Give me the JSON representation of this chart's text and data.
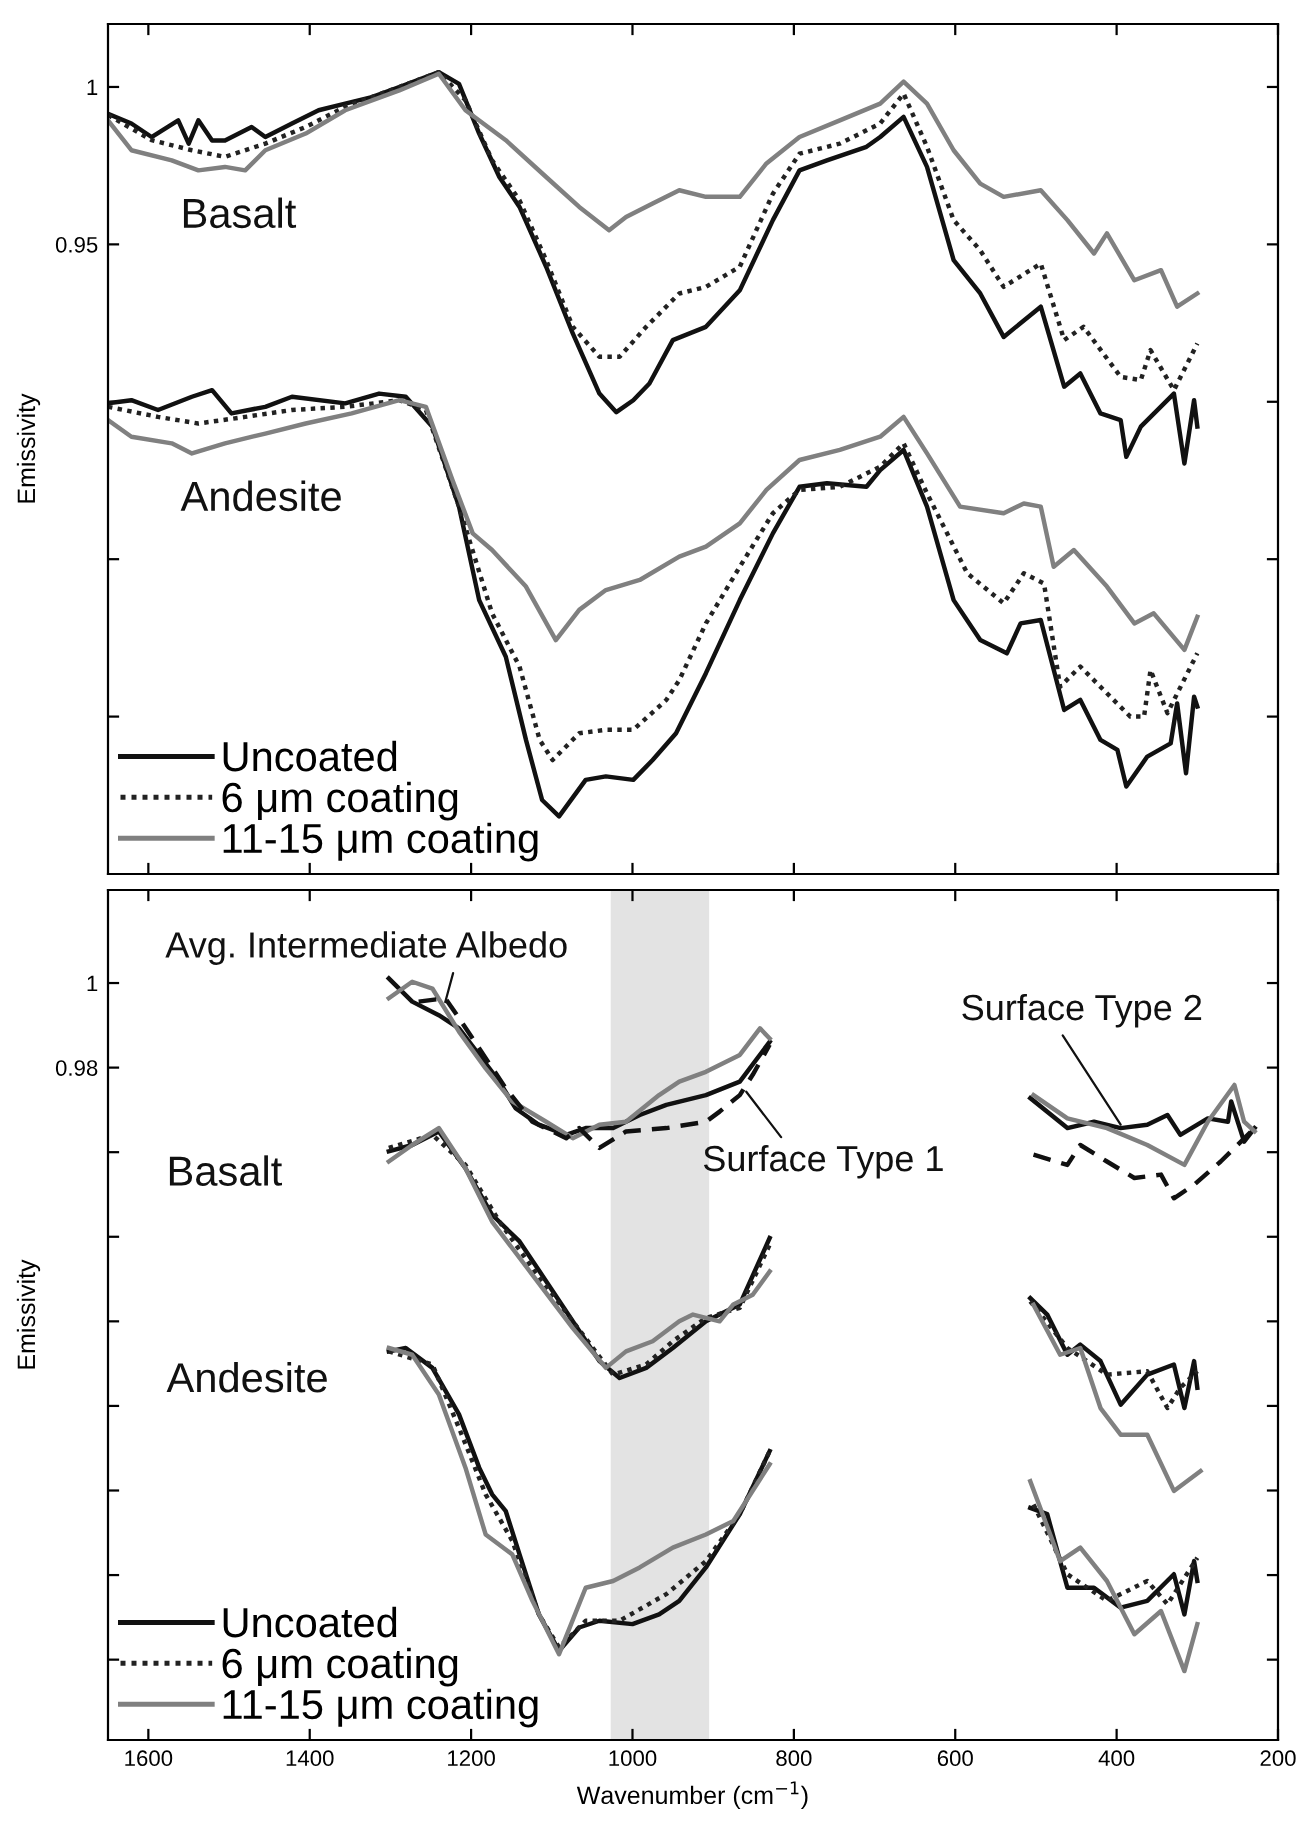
{
  "chart_data": [
    {
      "type": "line",
      "ylabel": "Emissivity",
      "xlim": [
        1650,
        200
      ],
      "xticks": [
        1600,
        1400,
        1200,
        1000,
        800,
        600,
        400,
        200
      ],
      "ylim": [
        0.75,
        1.02
      ],
      "yticks": [
        {
          "value": 0.8,
          "label": null
        },
        {
          "value": 0.85,
          "label": null
        },
        {
          "value": 0.9,
          "label": null
        },
        0.95,
        1
      ],
      "tick_labels": "y",
      "grid": false,
      "legend": "bottom left",
      "marker": "none",
      "annotations": [
        "Basalt",
        "Andesite"
      ],
      "series": [
        {
          "name": "Uncoated",
          "color": "#111111",
          "line_style": "solid",
          "x": [
            1650,
            1621,
            1596,
            1563,
            1550,
            1538,
            1521,
            1505,
            1472,
            1455,
            1422,
            1389,
            1356,
            1323,
            1289,
            1240,
            1215,
            1190,
            1165,
            1140,
            1107,
            1074,
            1041,
            1020,
            999,
            979,
            950,
            909,
            867,
            826,
            793,
            759,
            710,
            693,
            664,
            635,
            602,
            569,
            540,
            494,
            465,
            445,
            420,
            395,
            388,
            370,
            329,
            316,
            304,
            300
          ],
          "values": [
            0.9915,
            0.9884,
            0.9841,
            0.9894,
            0.982,
            0.9894,
            0.983,
            0.983,
            0.9873,
            0.9841,
            0.9884,
            0.9926,
            0.9947,
            0.9968,
            1.0,
            1.0047,
            1.001,
            0.9852,
            0.9714,
            0.9619,
            0.9429,
            0.9217,
            0.9026,
            0.8967,
            0.9005,
            0.9058,
            0.9196,
            0.9238,
            0.9354,
            0.9577,
            0.9735,
            0.9767,
            0.981,
            0.9841,
            0.9905,
            0.9746,
            0.945,
            0.9344,
            0.9206,
            0.9302,
            0.9048,
            0.909,
            0.8963,
            0.8942,
            0.8825,
            0.8921,
            0.9026,
            0.8804,
            0.9005,
            0.8921
          ]
        },
        {
          "name": "6 μm coating",
          "color": "#222222",
          "line_style": "dotted",
          "x": [
            1650,
            1596,
            1546,
            1505,
            1455,
            1405,
            1356,
            1289,
            1240,
            1207,
            1174,
            1140,
            1107,
            1074,
            1041,
            1016,
            983,
            942,
            909,
            867,
            826,
            793,
            743,
            693,
            664,
            635,
            602,
            569,
            540,
            494,
            465,
            441,
            395,
            370,
            358,
            329,
            300
          ],
          "values": [
            0.9911,
            0.9831,
            0.9799,
            0.9778,
            0.982,
            0.9873,
            0.9937,
            1.0,
            1.0047,
            0.9958,
            0.9767,
            0.964,
            0.945,
            0.9238,
            0.9143,
            0.9143,
            0.9238,
            0.9344,
            0.9365,
            0.9429,
            0.9661,
            0.9788,
            0.982,
            0.9884,
            0.9979,
            0.981,
            0.9577,
            0.9481,
            0.9365,
            0.9439,
            0.9196,
            0.9238,
            0.9079,
            0.9069,
            0.9164,
            0.9037,
            0.9185
          ]
        },
        {
          "name": "11-15 μm coating",
          "color": "#808080",
          "line_style": "solid",
          "x": [
            1650,
            1621,
            1571,
            1538,
            1505,
            1480,
            1455,
            1405,
            1356,
            1289,
            1240,
            1207,
            1157,
            1107,
            1066,
            1029,
            1008,
            975,
            942,
            909,
            867,
            834,
            793,
            743,
            693,
            664,
            635,
            602,
            569,
            540,
            494,
            461,
            428,
            412,
            378,
            345,
            325,
            300
          ],
          "values": [
            0.9894,
            0.9799,
            0.9767,
            0.9735,
            0.9746,
            0.9735,
            0.9799,
            0.9852,
            0.9926,
            0.9989,
            1.0042,
            0.9926,
            0.9831,
            0.9714,
            0.9619,
            0.9545,
            0.9587,
            0.963,
            0.9672,
            0.9651,
            0.9651,
            0.9757,
            0.9841,
            0.9894,
            0.9947,
            1.0017,
            0.9947,
            0.9799,
            0.9693,
            0.9651,
            0.9672,
            0.9577,
            0.9471,
            0.9535,
            0.9386,
            0.9418,
            0.9302,
            0.9344
          ]
        },
        {
          "color": "#111111",
          "line_style": "solid",
          "x": [
            1650,
            1621,
            1588,
            1546,
            1521,
            1497,
            1455,
            1422,
            1356,
            1314,
            1281,
            1248,
            1215,
            1190,
            1157,
            1132,
            1112,
            1091,
            1058,
            1033,
            999,
            975,
            946,
            909,
            867,
            826,
            793,
            759,
            710,
            693,
            664,
            635,
            602,
            569,
            536,
            519,
            494,
            465,
            445,
            420,
            399,
            388,
            362,
            333,
            325,
            314,
            304,
            300
          ],
          "values": [
            0.8995,
            0.9005,
            0.8974,
            0.9016,
            0.9037,
            0.8963,
            0.8984,
            0.9016,
            0.8995,
            0.9026,
            0.9016,
            0.8921,
            0.8667,
            0.837,
            0.819,
            0.7926,
            0.7735,
            0.7683,
            0.7799,
            0.781,
            0.7799,
            0.7862,
            0.7947,
            0.8138,
            0.837,
            0.8582,
            0.873,
            0.8741,
            0.873,
            0.8783,
            0.8847,
            0.8667,
            0.837,
            0.8243,
            0.8201,
            0.8296,
            0.8307,
            0.8021,
            0.8053,
            0.7926,
            0.7894,
            0.7778,
            0.7873,
            0.7915,
            0.8042,
            0.782,
            0.8063,
            0.8032
          ]
        },
        {
          "color": "#222222",
          "line_style": "dotted",
          "x": [
            1650,
            1588,
            1538,
            1480,
            1422,
            1356,
            1289,
            1256,
            1215,
            1174,
            1140,
            1115,
            1099,
            1066,
            1033,
            999,
            958,
            942,
            909,
            867,
            826,
            793,
            743,
            693,
            664,
            635,
            585,
            540,
            515,
            490,
            470,
            445,
            412,
            383,
            366,
            358,
            337,
            300
          ],
          "values": [
            0.8984,
            0.8952,
            0.8931,
            0.8952,
            0.8974,
            0.8984,
            0.9005,
            0.8974,
            0.8667,
            0.8328,
            0.8159,
            0.7926,
            0.7862,
            0.7947,
            0.7958,
            0.7958,
            0.8053,
            0.8116,
            0.8296,
            0.8476,
            0.8646,
            0.872,
            0.873,
            0.8794,
            0.8868,
            0.8709,
            0.8455,
            0.836,
            0.8455,
            0.8423,
            0.8095,
            0.8159,
            0.8074,
            0.8,
            0.8,
            0.8148,
            0.8011,
            0.8201
          ]
        },
        {
          "color": "#808080",
          "line_style": "solid",
          "x": [
            1650,
            1621,
            1571,
            1546,
            1505,
            1455,
            1405,
            1348,
            1289,
            1256,
            1223,
            1198,
            1174,
            1132,
            1095,
            1066,
            1033,
            991,
            942,
            909,
            867,
            834,
            793,
            743,
            693,
            664,
            635,
            594,
            540,
            515,
            494,
            478,
            453,
            412,
            378,
            354,
            316,
            300
          ],
          "values": [
            0.8942,
            0.8889,
            0.8868,
            0.8836,
            0.8868,
            0.8899,
            0.8931,
            0.8963,
            0.9005,
            0.8984,
            0.8751,
            0.8582,
            0.8529,
            0.8413,
            0.8243,
            0.8339,
            0.8402,
            0.8434,
            0.8508,
            0.854,
            0.8614,
            0.872,
            0.8815,
            0.8847,
            0.8889,
            0.8952,
            0.8836,
            0.8667,
            0.8646,
            0.8677,
            0.8667,
            0.8476,
            0.8529,
            0.8413,
            0.8296,
            0.8328,
            0.8212,
            0.8317
          ]
        }
      ]
    },
    {
      "type": "line",
      "xlabel": "Wavenumber (cm$^{−1}$)",
      "ylabel": "Emissivity",
      "xlim": [
        1650,
        200
      ],
      "xticks": [
        1600,
        1400,
        1200,
        1000,
        800,
        600,
        400,
        200
      ],
      "ylim": [
        0.821,
        1.022
      ],
      "yticks": [
        {
          "value": 0.84,
          "label": null
        },
        {
          "value": 0.86,
          "label": null
        },
        {
          "value": 0.88,
          "label": null
        },
        {
          "value": 0.9,
          "label": null
        },
        {
          "value": 0.92,
          "label": null
        },
        {
          "value": 0.94,
          "label": null
        },
        {
          "value": 0.96,
          "label": null
        },
        0.98,
        1
      ],
      "grid": false,
      "legend": "bottom left",
      "marker": "none",
      "bands": [
        {
          "axis": "x",
          "from": 1027,
          "to": 905,
          "color": "#e3e3e3"
        }
      ],
      "annotations": [
        {
          "text": "Avg. Intermediate Albedo",
          "x": 1232,
          "y": 0.9955
        },
        "Basalt",
        "Andesite",
        {
          "text": "Surface Type 1",
          "x": 859,
          "y": 0.9743
        },
        {
          "text": "Surface Type 2",
          "x": 395,
          "y": 0.9665
        }
      ],
      "series": [
        {
          "color": "#111111",
          "line_style": "solid",
          "x": [
            1302,
            1273,
            1240,
            1215,
            1190,
            1165,
            1145,
            1116,
            1082,
            1058,
            1024,
            991,
            958,
            909,
            867,
            830,
            700,
            507,
            461,
            428,
            395,
            362,
            337,
            321,
            287,
            262,
            258,
            242,
            229
          ],
          "values": [
            1.0011,
            0.9956,
            0.9924,
            0.9893,
            0.983,
            0.9767,
            0.9704,
            0.9665,
            0.9641,
            0.9657,
            0.9657,
            0.9688,
            0.9712,
            0.9735,
            0.9767,
            0.9861,
            null,
            0.9728,
            0.9657,
            0.9672,
            0.9657,
            0.9665,
            0.9688,
            0.9641,
            0.968,
            0.9672,
            0.972,
            0.9625,
            0.9657
          ]
        },
        {
          "color": "#808080",
          "line_style": "solid",
          "x": [
            1302,
            1273,
            1248,
            1215,
            1182,
            1149,
            1107,
            1074,
            1041,
            1008,
            967,
            942,
            909,
            867,
            842,
            830,
            700,
            503,
            461,
            412,
            362,
            316,
            287,
            254,
            242,
            229
          ],
          "values": [
            0.9964,
            1.0003,
            0.9987,
            0.9885,
            0.9798,
            0.972,
            0.9672,
            0.9633,
            0.9665,
            0.9672,
            0.9735,
            0.9767,
            0.979,
            0.983,
            0.9893,
            0.9869,
            null,
            0.9735,
            0.968,
            0.9657,
            0.9617,
            0.957,
            0.9672,
            0.9759,
            0.9672,
            0.9649
          ]
        },
        {
          "color": "#111111",
          "line_style": "dashed",
          "x": [
            1265,
            1232,
            1215,
            1157,
            1124,
            1082,
            1066,
            1041,
            1008,
            958,
            909,
            892,
            867,
            851,
            830,
            700,
            503,
            461,
            445,
            412,
            378,
            345,
            329,
            304,
            271,
            229
          ],
          "values": [
            0.9956,
            0.9964,
            0.9917,
            0.9751,
            0.9672,
            0.9633,
            0.9657,
            0.961,
            0.9649,
            0.9657,
            0.9672,
            0.9696,
            0.9735,
            0.9783,
            0.9854,
            null,
            0.9594,
            0.957,
            0.9617,
            0.9578,
            0.9539,
            0.9547,
            0.9491,
            0.9523,
            0.9578,
            0.9657
          ]
        },
        {
          "name": "Uncoated",
          "color": "#111111",
          "line_style": "solid",
          "x": [
            1302,
            1273,
            1240,
            1207,
            1174,
            1140,
            1107,
            1074,
            1041,
            1016,
            983,
            950,
            909,
            867,
            830,
            700,
            507,
            486,
            461,
            445,
            420,
            395,
            362,
            329,
            316,
            304,
            300
          ],
          "values": [
            0.9602,
            0.9617,
            0.9649,
            0.9562,
            0.9452,
            0.9389,
            0.9295,
            0.92,
            0.9106,
            0.9066,
            0.909,
            0.9137,
            0.92,
            0.924,
            0.9397,
            null,
            0.9255,
            0.9216,
            0.9121,
            0.9145,
            0.9106,
            0.9003,
            0.9074,
            0.9098,
            0.8995,
            0.9106,
            0.9043
          ]
        },
        {
          "name": "6 μm coating",
          "color": "#222222",
          "line_style": "dotted",
          "x": [
            1302,
            1248,
            1207,
            1165,
            1124,
            1074,
            1024,
            983,
            950,
            909,
            867,
            830,
            700,
            507,
            461,
            412,
            362,
            337,
            321,
            300
          ],
          "values": [
            0.961,
            0.9641,
            0.957,
            0.9436,
            0.9326,
            0.92,
            0.9074,
            0.9098,
            0.9153,
            0.9208,
            0.9232,
            0.9381,
            null,
            0.9247,
            0.9137,
            0.9074,
            0.9082,
            0.8995,
            0.9043,
            0.9082
          ]
        },
        {
          "name": "11-15 μm coating",
          "color": "#808080",
          "line_style": "solid",
          "x": [
            1302,
            1273,
            1240,
            1207,
            1174,
            1124,
            1074,
            1033,
            1008,
            975,
            942,
            925,
            892,
            875,
            851,
            830,
            700,
            503,
            470,
            445,
            420,
            395,
            362,
            329,
            296
          ],
          "values": [
            0.9578,
            0.9617,
            0.9657,
            0.9562,
            0.9436,
            0.931,
            0.9184,
            0.909,
            0.9129,
            0.9153,
            0.92,
            0.9216,
            0.92,
            0.924,
            0.9263,
            0.9318,
            null,
            0.9239,
            0.9121,
            0.9137,
            0.8995,
            0.8932,
            0.8932,
            0.8799,
            0.8846
          ]
        },
        {
          "color": "#111111",
          "line_style": "solid",
          "x": [
            1302,
            1281,
            1248,
            1215,
            1190,
            1174,
            1157,
            1140,
            1116,
            1091,
            1066,
            1041,
            1000,
            967,
            942,
            909,
            867,
            830,
            700,
            507,
            486,
            461,
            428,
            395,
            362,
            329,
            316,
            304,
            300
          ],
          "values": [
            0.9129,
            0.9137,
            0.909,
            0.898,
            0.8854,
            0.8791,
            0.8751,
            0.8649,
            0.8507,
            0.8421,
            0.8476,
            0.8492,
            0.8484,
            0.8507,
            0.8539,
            0.8618,
            0.8744,
            0.8893,
            null,
            0.8759,
            0.8744,
            0.857,
            0.857,
            0.8523,
            0.8539,
            0.8602,
            0.8507,
            0.8633,
            0.8586
          ]
        },
        {
          "color": "#222222",
          "line_style": "dotted",
          "x": [
            1302,
            1248,
            1215,
            1182,
            1149,
            1116,
            1091,
            1058,
            1016,
            958,
            909,
            867,
            830,
            700,
            503,
            461,
            412,
            362,
            337,
            300
          ],
          "values": [
            0.9129,
            0.9098,
            0.8948,
            0.8791,
            0.8681,
            0.8507,
            0.8429,
            0.8492,
            0.8492,
            0.8555,
            0.8633,
            0.8744,
            0.8893,
            null,
            0.8767,
            0.8602,
            0.8539,
            0.8586,
            0.8531,
            0.8641
          ]
        },
        {
          "color": "#808080",
          "line_style": "solid",
          "x": [
            1302,
            1273,
            1240,
            1207,
            1182,
            1149,
            1124,
            1091,
            1058,
            1024,
            991,
            950,
            909,
            875,
            830,
            700,
            507,
            470,
            445,
            412,
            378,
            345,
            316,
            300
          ],
          "values": [
            0.9137,
            0.9121,
            0.9027,
            0.8854,
            0.8696,
            0.8649,
            0.8539,
            0.8413,
            0.857,
            0.8586,
            0.8618,
            0.8665,
            0.8696,
            0.8728,
            0.8862,
            null,
            0.8822,
            0.8633,
            0.8665,
            0.8586,
            0.846,
            0.8515,
            0.8373,
            0.8484
          ]
        }
      ]
    }
  ]
}
